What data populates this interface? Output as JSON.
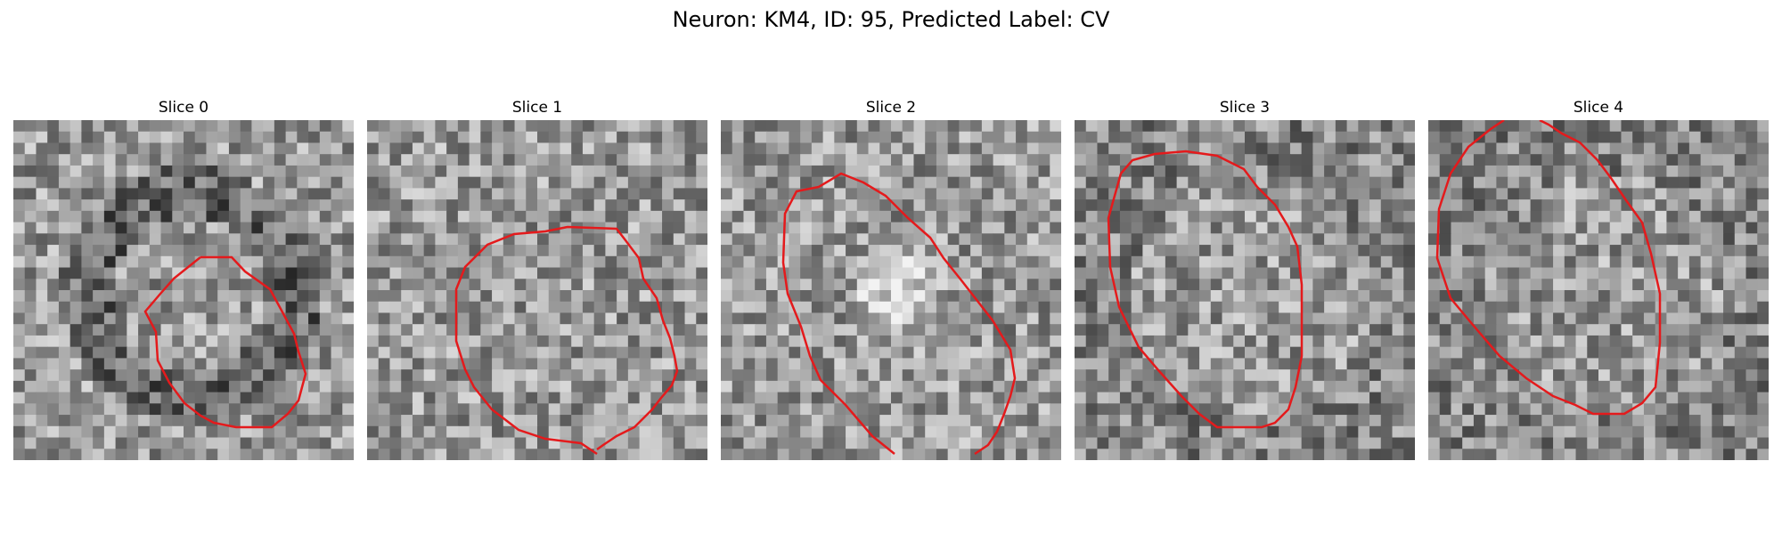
{
  "title": "Neuron: KM4, ID: 95, Predicted Label: CV",
  "colors": {
    "contour": "#e41a1c",
    "background": "#ffffff"
  },
  "slices": [
    {
      "label": "Slice 0",
      "seed": 11,
      "bias": "ring"
    },
    {
      "label": "Slice 1",
      "seed": 23,
      "bias": "light"
    },
    {
      "label": "Slice 2",
      "seed": 37,
      "bias": "bright"
    },
    {
      "label": "Slice 3",
      "seed": 41,
      "bias": "dark"
    },
    {
      "label": "Slice 4",
      "seed": 53,
      "bias": "dark"
    }
  ]
}
